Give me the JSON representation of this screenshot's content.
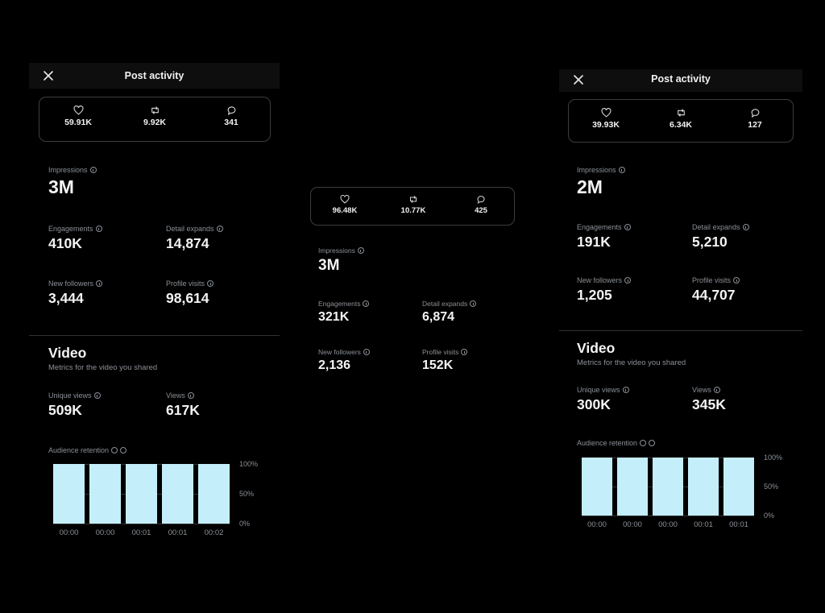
{
  "left": {
    "title": "Post activity",
    "likes": "59.91K",
    "reposts": "9.92K",
    "replies": "341",
    "impressions_label": "Impressions",
    "impressions": "3M",
    "engagements_label": "Engagements",
    "engagements": "410K",
    "detail_expands_label": "Detail expands",
    "detail_expands": "14,874",
    "new_followers_label": "New followers",
    "new_followers": "3,444",
    "profile_visits_label": "Profile visits",
    "profile_visits": "98,614",
    "video_title": "Video",
    "video_sub": "Metrics for the video you shared",
    "unique_views_label": "Unique views",
    "unique_views": "509K",
    "views_label": "Views",
    "views": "617K",
    "retention_label": "Audience retention"
  },
  "middle": {
    "likes": "96.48K",
    "reposts": "10.77K",
    "replies": "425",
    "impressions_label": "Impressions",
    "impressions": "3M",
    "engagements_label": "Engagements",
    "engagements": "321K",
    "detail_expands_label": "Detail expands",
    "detail_expands": "6,874",
    "new_followers_label": "New followers",
    "new_followers": "2,136",
    "profile_visits_label": "Profile visits",
    "profile_visits": "152K"
  },
  "right": {
    "title": "Post activity",
    "likes": "39.93K",
    "reposts": "6.34K",
    "replies": "127",
    "impressions_label": "Impressions",
    "impressions": "2M",
    "engagements_label": "Engagements",
    "engagements": "191K",
    "detail_expands_label": "Detail expands",
    "detail_expands": "5,210",
    "new_followers_label": "New followers",
    "new_followers": "1,205",
    "profile_visits_label": "Profile visits",
    "profile_visits": "44,707",
    "video_title": "Video",
    "video_sub": "Metrics for the video you shared",
    "unique_views_label": "Unique views",
    "unique_views": "300K",
    "views_label": "Views",
    "views": "345K",
    "retention_label": "Audience retention"
  },
  "colors": {
    "bar": "#c5eefb",
    "background": "#000000"
  },
  "chart_data": [
    {
      "type": "bar",
      "title": "Audience retention",
      "categories": [
        "00:00",
        "00:00",
        "00:01",
        "00:01",
        "00:02"
      ],
      "values": [
        100,
        100,
        100,
        100,
        100
      ],
      "yticks": [
        "100%",
        "50%",
        "0%"
      ],
      "ylim": [
        0,
        100
      ]
    },
    {
      "type": "bar",
      "title": "Audience retention",
      "categories": [
        "00:00",
        "00:00",
        "00:00",
        "00:01",
        "00:01"
      ],
      "values": [
        100,
        100,
        100,
        100,
        100
      ],
      "yticks": [
        "100%",
        "50%",
        "0%"
      ],
      "ylim": [
        0,
        100
      ]
    }
  ]
}
